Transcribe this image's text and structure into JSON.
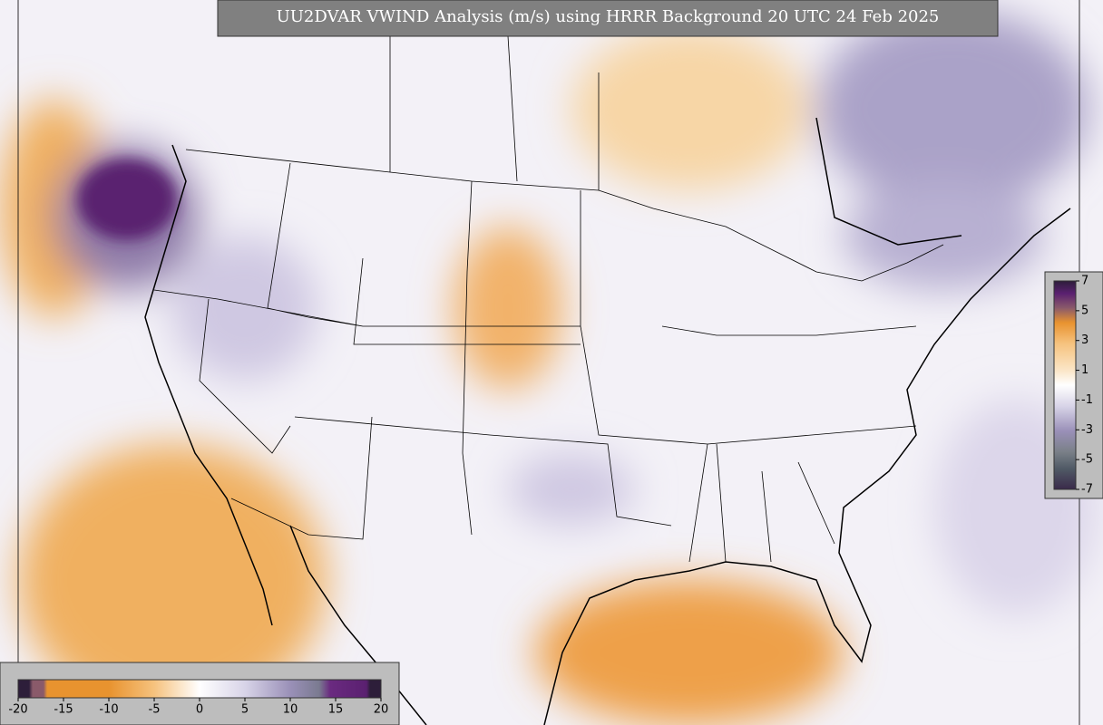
{
  "header": {
    "title": "UU2DVAR VWIND Analysis (m/s) using HRRR Background 20 UTC 24 Feb 2025"
  },
  "colorbar_bottom": {
    "ticks": [
      -20,
      -15,
      -10,
      -5,
      0,
      5,
      10,
      15,
      20
    ]
  },
  "colorbar_right": {
    "ticks": [
      7,
      5,
      3,
      1,
      -1,
      -3,
      -5,
      -7
    ]
  }
}
